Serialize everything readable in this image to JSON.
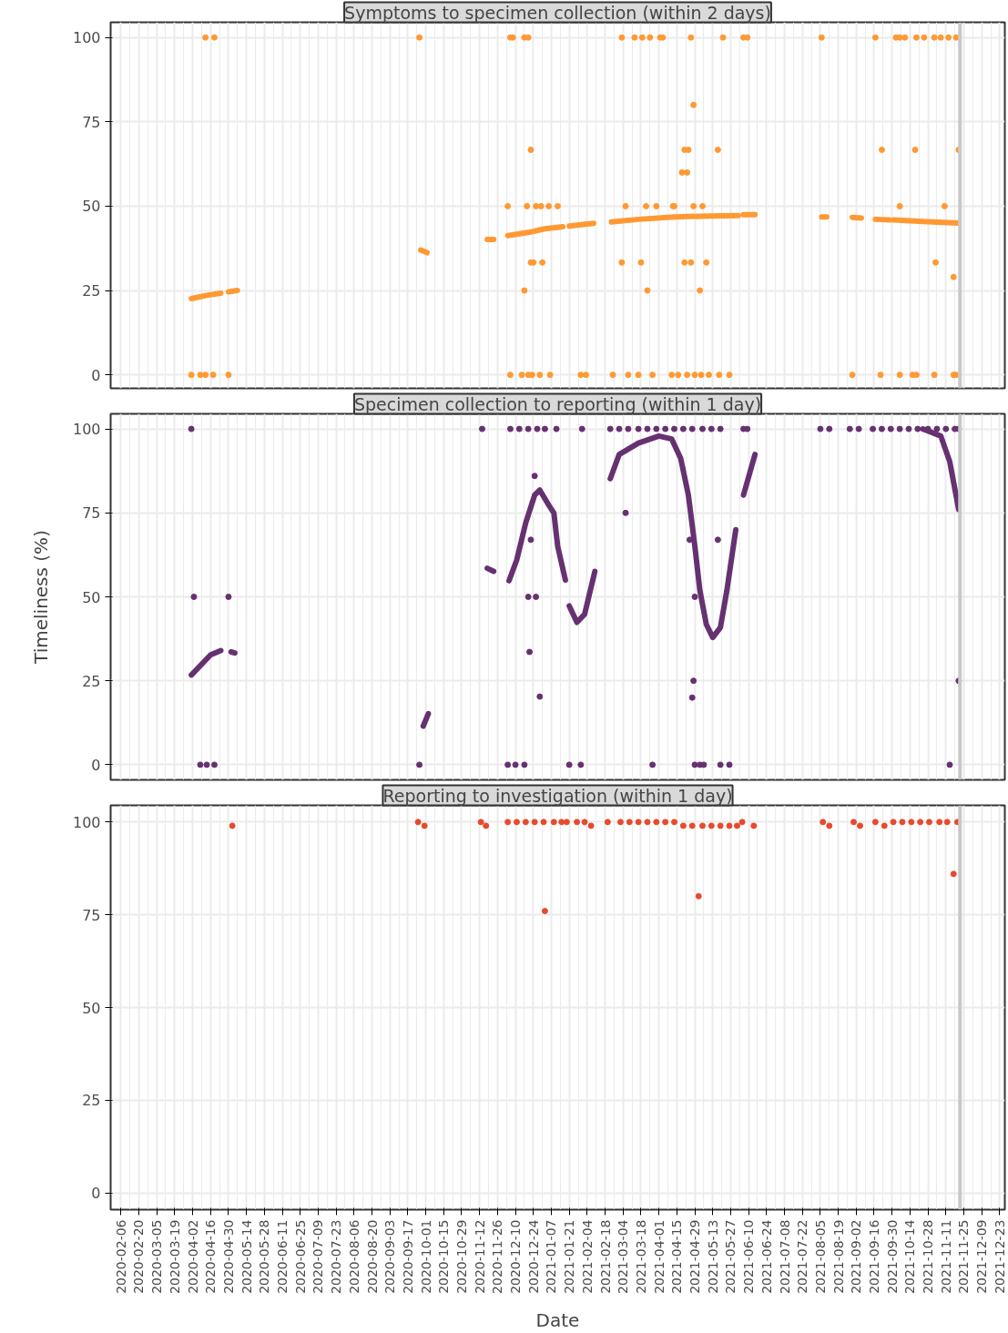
{
  "chart_data": [
    {
      "type": "scatter",
      "title": "Symptoms to specimen collection (within 2 days)",
      "xlim": [
        "2020-01-29",
        "2021-12-27"
      ],
      "ylim": [
        -4,
        104.5
      ],
      "yticks": [
        0,
        25,
        50,
        75,
        100
      ],
      "xticks": [
        "2020-02-06",
        "2020-02-20",
        "2020-03-05",
        "2020-03-19",
        "2020-04-02",
        "2020-04-16",
        "2020-04-30",
        "2020-05-14",
        "2020-05-28",
        "2020-06-11",
        "2020-06-25",
        "2020-07-09",
        "2020-07-23",
        "2020-08-06",
        "2020-08-20",
        "2020-09-03",
        "2020-09-17",
        "2020-10-01",
        "2020-10-15",
        "2020-10-29",
        "2020-11-12",
        "2020-11-26",
        "2020-12-10",
        "2020-12-24",
        "2021-01-07",
        "2021-01-21",
        "2021-02-04",
        "2021-02-18",
        "2021-03-04",
        "2021-03-18",
        "2021-04-01",
        "2021-04-15",
        "2021-04-29",
        "2021-05-13",
        "2021-05-27",
        "2021-06-10",
        "2021-06-24",
        "2021-07-08",
        "2021-07-22",
        "2021-08-05",
        "2021-08-19",
        "2021-09-02",
        "2021-09-16",
        "2021-09-30",
        "2021-10-14",
        "2021-10-28",
        "2021-11-11",
        "2021-11-25",
        "2021-12-09",
        "2021-12-23"
      ],
      "tick_labels": "y",
      "grid": true,
      "ref_lines": [
        {
          "axis": "x",
          "value": "2021-11-22",
          "color": "#c8c8c8"
        }
      ],
      "series": [
        {
          "marker": "circle",
          "color": "#ff9933",
          "x": [
            "2020-04-12",
            "2020-04-19",
            "2020-09-26",
            "2020-12-06",
            "2020-12-08",
            "2020-12-17",
            "2020-12-20",
            "2021-03-03",
            "2021-03-13",
            "2021-03-19",
            "2021-03-25",
            "2021-04-02",
            "2021-04-04",
            "2021-04-26",
            "2021-05-21",
            "2021-06-06",
            "2021-06-09",
            "2021-08-06",
            "2021-09-17",
            "2021-10-03",
            "2021-10-06",
            "2021-10-10",
            "2021-10-19",
            "2021-10-25",
            "2021-11-02",
            "2021-11-07",
            "2021-11-13",
            "2021-11-19",
            "2021-04-28",
            "2020-12-22",
            "2021-04-21",
            "2021-04-24",
            "2021-05-17",
            "2021-09-22",
            "2021-10-18",
            "2021-11-21",
            "2021-04-19",
            "2021-04-23",
            "2020-12-04",
            "2020-12-19",
            "2020-12-26",
            "2020-12-30",
            "2021-01-05",
            "2021-01-12",
            "2021-03-06",
            "2021-03-22",
            "2021-03-30",
            "2021-04-12",
            "2021-04-13",
            "2021-04-28",
            "2021-05-05",
            "2021-10-06",
            "2021-11-10",
            "2020-12-22",
            "2020-12-24",
            "2020-12-31",
            "2021-03-03",
            "2021-03-18",
            "2021-04-21",
            "2021-04-26",
            "2021-05-08",
            "2021-11-03",
            "2020-12-17",
            "2021-03-23",
            "2021-05-03",
            "2021-11-17",
            "2020-04-01",
            "2020-04-08",
            "2020-04-12",
            "2020-04-18",
            "2020-04-30",
            "2020-12-06",
            "2020-12-15",
            "2020-12-20",
            "2020-12-23",
            "2020-12-29",
            "2021-01-06",
            "2021-01-30",
            "2021-02-03",
            "2021-02-24",
            "2021-03-08",
            "2021-03-16",
            "2021-03-27",
            "2021-04-11",
            "2021-04-16",
            "2021-04-23",
            "2021-04-29",
            "2021-05-04",
            "2021-05-10",
            "2021-05-18",
            "2021-05-26",
            "2021-08-30",
            "2021-09-21",
            "2021-10-06",
            "2021-10-16",
            "2021-10-19",
            "2021-11-02",
            "2021-11-17",
            "2021-11-19"
          ],
          "values": [
            100,
            100,
            100,
            100,
            100,
            100,
            100,
            100,
            100,
            100,
            100,
            100,
            100,
            100,
            100,
            100,
            100,
            100,
            100,
            100,
            100,
            100,
            100,
            100,
            100,
            100,
            100,
            100,
            80,
            66.7,
            66.7,
            66.7,
            66.7,
            66.7,
            66.7,
            66.7,
            60,
            60,
            50,
            50,
            50,
            50,
            50,
            50,
            50,
            50,
            50,
            50,
            50,
            50,
            50,
            50,
            50,
            33.3,
            33.3,
            33.3,
            33.3,
            33.3,
            33.3,
            33.3,
            33.3,
            33.3,
            25,
            25,
            25,
            29,
            0,
            0,
            0,
            0,
            0,
            0,
            0,
            0,
            0,
            0,
            0,
            0,
            0,
            0,
            0,
            0,
            0,
            0,
            0,
            0,
            0,
            0,
            0,
            0,
            0,
            0,
            0,
            0,
            0,
            0,
            0,
            0,
            0
          ]
        },
        {
          "type": "line",
          "color": "#ff9933",
          "x": [
            "2020-04-01",
            "2020-04-12",
            "2020-04-24",
            "2020-04-27",
            "2020-04-30",
            "2020-05-07",
            "2020-05-10",
            "2020-09-27",
            "2020-10-02",
            "2020-10-10",
            "2020-11-18",
            "2020-11-23",
            "2020-11-28",
            "2020-12-04",
            "2020-12-20",
            "2021-01-02",
            "2021-01-16",
            "2021-01-18",
            "2021-01-21",
            "2021-02-09",
            "2021-02-15",
            "2021-02-23",
            "2021-03-16",
            "2021-04-13",
            "2021-05-11",
            "2021-06-02",
            "2021-06-04",
            "2021-06-06",
            "2021-06-15",
            "2021-07-15",
            "2021-08-06",
            "2021-08-10",
            "2021-08-20",
            "2021-08-30",
            "2021-09-06",
            "2021-09-10",
            "2021-09-17",
            "2021-09-28",
            "2021-09-30",
            "2021-10-01",
            "2021-10-28",
            "2021-11-21"
          ],
          "values": [
            22.6,
            23.5,
            24.2,
            null,
            24.6,
            25,
            null,
            37,
            36.2,
            null,
            40.1,
            40.1,
            null,
            41.3,
            42.2,
            43.3,
            43.9,
            null,
            44.1,
            44.9,
            null,
            45.3,
            46.1,
            46.8,
            47.1,
            47.2,
            null,
            47.5,
            47.5,
            null,
            46.8,
            46.8,
            null,
            46.7,
            46.5,
            null,
            46.1,
            45.9,
            null,
            45.9,
            45.4,
            45
          ]
        }
      ]
    },
    {
      "type": "scatter",
      "title": "Specimen collection to reporting (within 1 day)",
      "ylabel": "Timeliness (%)",
      "xlim": [
        "2020-01-29",
        "2021-12-27"
      ],
      "ylim": [
        -4.5,
        104.5
      ],
      "yticks": [
        0,
        25,
        50,
        75,
        100
      ],
      "xticks": [
        "2020-02-06",
        "2020-02-20",
        "2020-03-05",
        "2020-03-19",
        "2020-04-02",
        "2020-04-16",
        "2020-04-30",
        "2020-05-14",
        "2020-05-28",
        "2020-06-11",
        "2020-06-25",
        "2020-07-09",
        "2020-07-23",
        "2020-08-06",
        "2020-08-20",
        "2020-09-03",
        "2020-09-17",
        "2020-10-01",
        "2020-10-15",
        "2020-10-29",
        "2020-11-12",
        "2020-11-26",
        "2020-12-10",
        "2020-12-24",
        "2021-01-07",
        "2021-01-21",
        "2021-02-04",
        "2021-02-18",
        "2021-03-04",
        "2021-03-18",
        "2021-04-01",
        "2021-04-15",
        "2021-04-29",
        "2021-05-13",
        "2021-05-27",
        "2021-06-10",
        "2021-06-24",
        "2021-07-08",
        "2021-07-22",
        "2021-08-05",
        "2021-08-19",
        "2021-09-02",
        "2021-09-16",
        "2021-09-30",
        "2021-10-14",
        "2021-10-28",
        "2021-11-11",
        "2021-11-25",
        "2021-12-09",
        "2021-12-23"
      ],
      "tick_labels": "y",
      "grid": true,
      "ref_lines": [
        {
          "axis": "x",
          "value": "2021-11-22",
          "color": "#c8c8c8"
        }
      ],
      "series": [
        {
          "marker": "circle",
          "color": "#663171",
          "x": [
            "2020-04-01",
            "2020-11-14",
            "2020-12-06",
            "2020-12-13",
            "2020-12-20",
            "2020-12-27",
            "2021-01-02",
            "2021-01-11",
            "2021-01-31",
            "2021-02-22",
            "2021-03-01",
            "2021-03-08",
            "2021-03-16",
            "2021-03-23",
            "2021-03-30",
            "2021-04-06",
            "2021-04-13",
            "2021-04-20",
            "2021-04-27",
            "2021-05-05",
            "2021-05-12",
            "2021-05-19",
            "2021-06-06",
            "2021-06-09",
            "2021-08-05",
            "2021-08-12",
            "2021-08-28",
            "2021-09-04",
            "2021-09-15",
            "2021-09-22",
            "2021-09-29",
            "2021-10-06",
            "2021-10-13",
            "2021-10-20",
            "2021-10-28",
            "2021-11-04",
            "2021-11-11",
            "2021-11-18",
            "2021-11-21",
            "2020-04-03",
            "2020-04-30",
            "2020-04-08",
            "2020-04-13",
            "2020-04-19",
            "2020-09-26",
            "2020-12-04",
            "2020-12-10",
            "2020-12-17",
            "2020-12-25",
            "2020-12-22",
            "2020-12-20",
            "2020-12-26",
            "2020-12-21",
            "2020-12-29",
            "2021-03-06",
            "2021-04-25",
            "2021-05-17",
            "2021-04-29",
            "2021-04-28",
            "2021-04-27",
            "2021-11-21",
            "2021-01-21",
            "2021-01-30",
            "2021-03-27",
            "2021-04-29",
            "2021-05-03",
            "2021-05-06",
            "2021-05-19",
            "2021-05-26",
            "2021-11-14"
          ],
          "values": [
            100,
            100,
            100,
            100,
            100,
            100,
            100,
            100,
            100,
            100,
            100,
            100,
            100,
            100,
            100,
            100,
            100,
            100,
            100,
            100,
            100,
            100,
            100,
            100,
            100,
            100,
            100,
            100,
            100,
            100,
            100,
            100,
            100,
            100,
            100,
            100,
            100,
            100,
            100,
            50,
            50,
            0,
            0,
            0,
            0,
            0,
            0,
            0,
            86,
            67,
            50,
            50,
            33.6,
            20.3,
            75,
            67,
            67,
            50,
            25,
            20,
            25,
            0,
            0,
            0,
            0,
            0,
            0,
            0,
            0,
            0
          ]
        },
        {
          "type": "line",
          "color": "#663171",
          "x": [
            "2020-04-01",
            "2020-04-16",
            "2020-04-24",
            "2020-04-28",
            "2020-05-02",
            "2020-05-05",
            "2020-05-10",
            "2020-09-29",
            "2020-10-03",
            "2020-10-10",
            "2020-11-18",
            "2020-11-23",
            "2020-11-28",
            "2020-12-05",
            "2020-12-11",
            "2020-12-18",
            "2020-12-25",
            "2020-12-29",
            "2021-01-05",
            "2021-01-09",
            "2021-01-12",
            "2021-01-18",
            "2021-01-19",
            "2021-01-21",
            "2021-01-27",
            "2021-02-02",
            "2021-02-10",
            "2021-02-15",
            "2021-02-22",
            "2021-03-01",
            "2021-03-16",
            "2021-04-01",
            "2021-04-11",
            "2021-04-18",
            "2021-04-24",
            "2021-04-29",
            "2021-05-03",
            "2021-05-08",
            "2021-05-13",
            "2021-05-19",
            "2021-05-24",
            "2021-05-31",
            "2021-06-03",
            "2021-06-06",
            "2021-06-15",
            "2021-07-15",
            "2021-10-24",
            "2021-11-07",
            "2021-11-14",
            "2021-11-21"
          ],
          "values": [
            26.7,
            32.7,
            34,
            null,
            33.6,
            33.3,
            null,
            11.5,
            15.2,
            null,
            58.5,
            57.6,
            null,
            54.8,
            61,
            72,
            80.3,
            81.8,
            77.3,
            75,
            65,
            55,
            null,
            47.3,
            42.4,
            44.8,
            57.6,
            null,
            85.2,
            92.4,
            95.8,
            97.9,
            97,
            91.2,
            80.3,
            65.2,
            51.8,
            41.8,
            37.9,
            40.9,
            51.8,
            70,
            null,
            80.3,
            92.4,
            null,
            100,
            97.9,
            90.3,
            76
          ]
        }
      ]
    },
    {
      "type": "scatter",
      "title": "Reporting to investigation (within 1 day)",
      "xlabel": "Date",
      "xlim": [
        "2020-01-29",
        "2021-12-27"
      ],
      "ylim": [
        -4.5,
        104.5
      ],
      "yticks": [
        0,
        25,
        50,
        75,
        100
      ],
      "xticks": [
        "2020-02-06",
        "2020-02-20",
        "2020-03-05",
        "2020-03-19",
        "2020-04-02",
        "2020-04-16",
        "2020-04-30",
        "2020-05-14",
        "2020-05-28",
        "2020-06-11",
        "2020-06-25",
        "2020-07-09",
        "2020-07-23",
        "2020-08-06",
        "2020-08-20",
        "2020-09-03",
        "2020-09-17",
        "2020-10-01",
        "2020-10-15",
        "2020-10-29",
        "2020-11-12",
        "2020-11-26",
        "2020-12-10",
        "2020-12-24",
        "2021-01-07",
        "2021-01-21",
        "2021-02-04",
        "2021-02-18",
        "2021-03-04",
        "2021-03-18",
        "2021-04-01",
        "2021-04-15",
        "2021-04-29",
        "2021-05-13",
        "2021-05-27",
        "2021-06-10",
        "2021-06-24",
        "2021-07-08",
        "2021-07-22",
        "2021-08-05",
        "2021-08-19",
        "2021-09-02",
        "2021-09-16",
        "2021-09-30",
        "2021-10-14",
        "2021-10-28",
        "2021-11-11",
        "2021-11-25",
        "2021-12-09",
        "2021-12-23"
      ],
      "grid": true,
      "ref_lines": [
        {
          "axis": "x",
          "value": "2021-11-22",
          "color": "#c8c8c8"
        }
      ],
      "series": [
        {
          "marker": "circle",
          "color": "#e64b2e",
          "x": [
            "2020-05-03",
            "2020-09-25",
            "2020-09-30",
            "2020-11-13",
            "2020-11-17",
            "2020-12-04",
            "2020-12-11",
            "2020-12-18",
            "2020-12-25",
            "2021-01-01",
            "2021-01-09",
            "2021-01-15",
            "2021-01-19",
            "2021-01-27",
            "2021-02-02",
            "2021-02-07",
            "2021-02-20",
            "2021-03-02",
            "2021-03-09",
            "2021-03-16",
            "2021-03-23",
            "2021-03-30",
            "2021-04-06",
            "2021-04-13",
            "2021-04-20",
            "2021-04-27",
            "2021-05-05",
            "2021-05-12",
            "2021-05-19",
            "2021-05-26",
            "2021-06-01",
            "2021-06-05",
            "2021-06-14",
            "2021-08-07",
            "2021-08-12",
            "2021-08-31",
            "2021-09-05",
            "2021-09-17",
            "2021-09-24",
            "2021-10-01",
            "2021-10-08",
            "2021-10-15",
            "2021-10-22",
            "2021-10-29",
            "2021-11-06",
            "2021-11-12",
            "2021-11-20",
            "2021-01-02",
            "2021-05-02",
            "2021-11-17"
          ],
          "values": [
            99,
            100,
            99,
            100,
            99,
            100,
            100,
            100,
            100,
            100,
            100,
            100,
            100,
            100,
            100,
            99,
            100,
            100,
            100,
            100,
            100,
            100,
            100,
            100,
            99,
            99,
            99,
            99,
            99,
            99,
            99,
            100,
            99,
            100,
            99,
            100,
            99,
            100,
            99,
            100,
            100,
            100,
            100,
            100,
            100,
            100,
            100,
            76,
            80,
            86
          ]
        }
      ]
    }
  ]
}
